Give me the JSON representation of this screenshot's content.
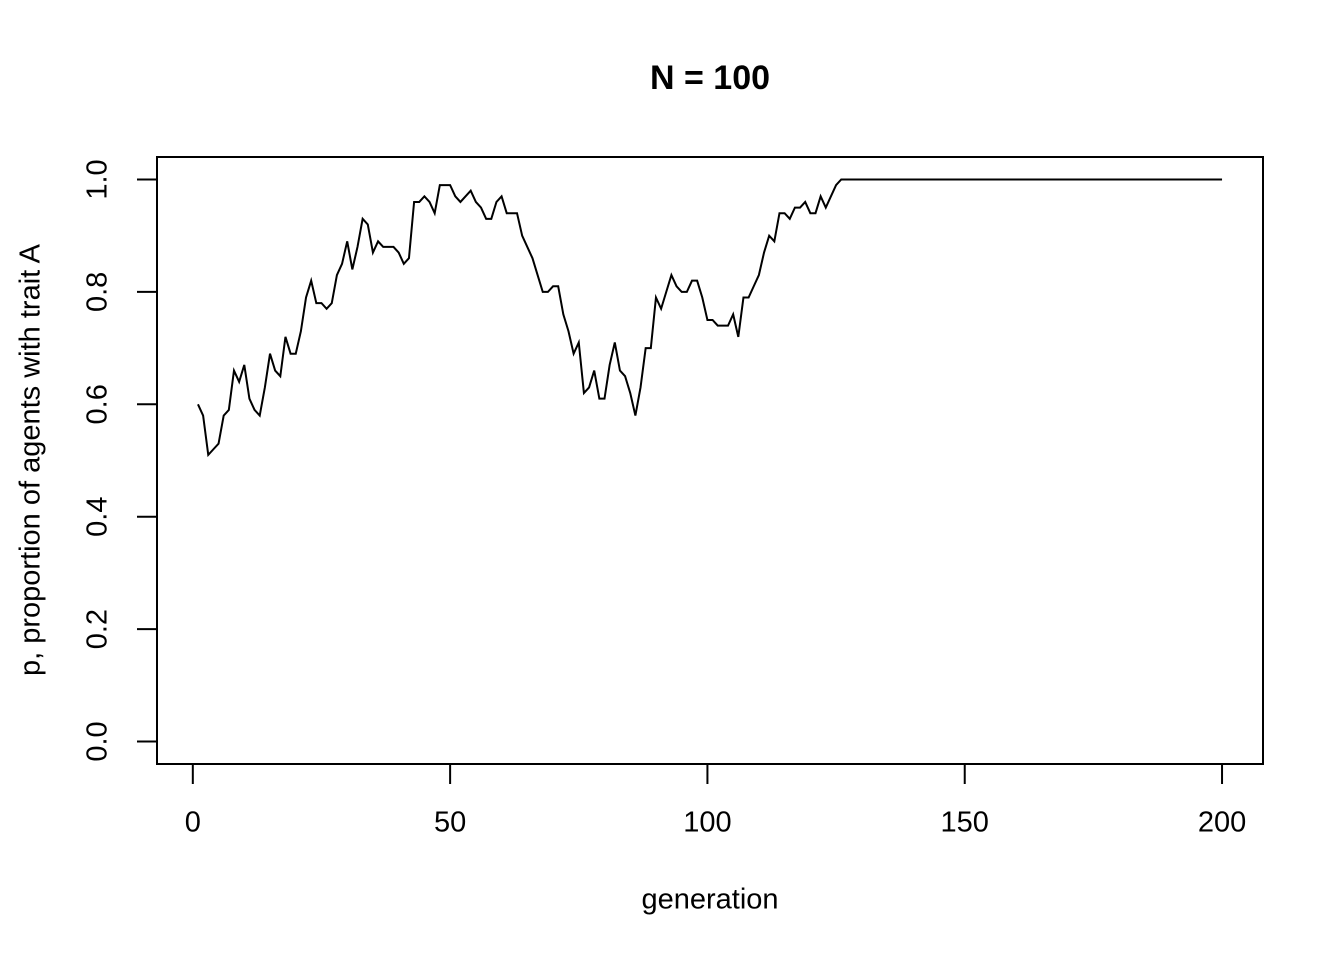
{
  "chart_data": {
    "type": "line",
    "title": "N = 100",
    "xlabel": "generation",
    "ylabel": "p, proportion of agents with trait A",
    "x": [
      1,
      2,
      3,
      4,
      5,
      6,
      7,
      8,
      9,
      10,
      11,
      12,
      13,
      14,
      15,
      16,
      17,
      18,
      19,
      20,
      21,
      22,
      23,
      24,
      25,
      26,
      27,
      28,
      29,
      30,
      31,
      32,
      33,
      34,
      35,
      36,
      37,
      38,
      39,
      40,
      41,
      42,
      43,
      44,
      45,
      46,
      47,
      48,
      49,
      50,
      51,
      52,
      53,
      54,
      55,
      56,
      57,
      58,
      59,
      60,
      61,
      62,
      63,
      64,
      65,
      66,
      67,
      68,
      69,
      70,
      71,
      72,
      73,
      74,
      75,
      76,
      77,
      78,
      79,
      80,
      81,
      82,
      83,
      84,
      85,
      86,
      87,
      88,
      89,
      90,
      91,
      92,
      93,
      94,
      95,
      96,
      97,
      98,
      99,
      100,
      101,
      102,
      103,
      104,
      105,
      106,
      107,
      108,
      109,
      110,
      111,
      112,
      113,
      114,
      115,
      116,
      117,
      118,
      119,
      120,
      121,
      122,
      123,
      124,
      125,
      126,
      127,
      128,
      129,
      130,
      131,
      132,
      133,
      134,
      135,
      136,
      137,
      138,
      139,
      140,
      141,
      142,
      143,
      144,
      145,
      146,
      147,
      148,
      149,
      150,
      151,
      152,
      153,
      154,
      155,
      156,
      157,
      158,
      159,
      160,
      161,
      162,
      163,
      164,
      165,
      166,
      167,
      168,
      169,
      170,
      171,
      172,
      173,
      174,
      175,
      176,
      177,
      178,
      179,
      180,
      181,
      182,
      183,
      184,
      185,
      186,
      187,
      188,
      189,
      190,
      191,
      192,
      193,
      194,
      195,
      196,
      197,
      198,
      199,
      200
    ],
    "series": [
      {
        "name": "p",
        "color": "#000000",
        "values": [
          0.6,
          0.58,
          0.51,
          0.52,
          0.53,
          0.58,
          0.59,
          0.66,
          0.64,
          0.67,
          0.61,
          0.59,
          0.58,
          0.63,
          0.69,
          0.66,
          0.65,
          0.72,
          0.69,
          0.69,
          0.73,
          0.79,
          0.82,
          0.78,
          0.78,
          0.77,
          0.78,
          0.83,
          0.85,
          0.89,
          0.84,
          0.88,
          0.93,
          0.92,
          0.87,
          0.89,
          0.88,
          0.88,
          0.88,
          0.87,
          0.85,
          0.86,
          0.96,
          0.96,
          0.97,
          0.96,
          0.94,
          0.99,
          0.99,
          0.99,
          0.97,
          0.96,
          0.97,
          0.98,
          0.96,
          0.95,
          0.93,
          0.93,
          0.96,
          0.97,
          0.94,
          0.94,
          0.94,
          0.9,
          0.88,
          0.86,
          0.83,
          0.8,
          0.8,
          0.81,
          0.81,
          0.76,
          0.73,
          0.69,
          0.71,
          0.62,
          0.63,
          0.66,
          0.61,
          0.61,
          0.67,
          0.71,
          0.66,
          0.65,
          0.62,
          0.58,
          0.63,
          0.7,
          0.7,
          0.79,
          0.77,
          0.8,
          0.83,
          0.81,
          0.8,
          0.8,
          0.82,
          0.82,
          0.79,
          0.75,
          0.75,
          0.74,
          0.74,
          0.74,
          0.76,
          0.72,
          0.79,
          0.79,
          0.81,
          0.83,
          0.87,
          0.9,
          0.89,
          0.94,
          0.94,
          0.93,
          0.95,
          0.95,
          0.96,
          0.94,
          0.94,
          0.97,
          0.95,
          0.97,
          0.99,
          1,
          1,
          1,
          1,
          1,
          1,
          1,
          1,
          1,
          1,
          1,
          1,
          1,
          1,
          1,
          1,
          1,
          1,
          1,
          1,
          1,
          1,
          1,
          1,
          1,
          1,
          1,
          1,
          1,
          1,
          1,
          1,
          1,
          1,
          1,
          1,
          1,
          1,
          1,
          1,
          1,
          1,
          1,
          1,
          1,
          1,
          1,
          1,
          1,
          1,
          1,
          1,
          1,
          1,
          1,
          1,
          1,
          1,
          1,
          1,
          1,
          1,
          1,
          1,
          1,
          1,
          1,
          1,
          1,
          1,
          1,
          1,
          1,
          1,
          1
        ]
      }
    ],
    "xlim": [
      -6.96,
      207.96
    ],
    "xticks": [
      0,
      50,
      100,
      150,
      200
    ],
    "ylim": [
      -0.04,
      1.04
    ],
    "yticks": [
      {
        "value": 0,
        "label": "0.0"
      },
      0.2,
      0.4,
      0.6,
      0.8,
      {
        "value": 1,
        "label": "1.0"
      }
    ],
    "grid": false
  }
}
